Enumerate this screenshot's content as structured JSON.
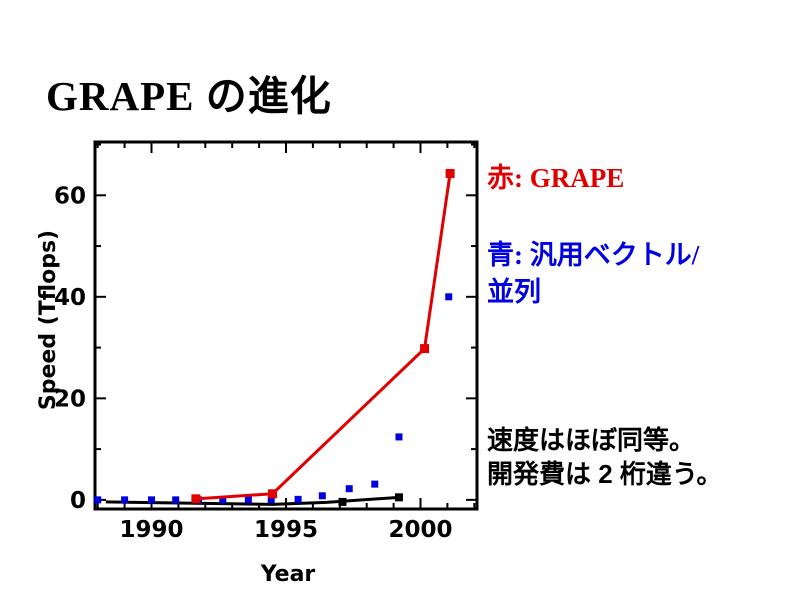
{
  "slide": {
    "title": "GRAPE の進化",
    "background": "#ffffff"
  },
  "legend": {
    "red_label": "赤: GRAPE",
    "red_color": "#e10000",
    "blue_label_line1": "青: 汎用ベクトル/",
    "blue_label_line2": "並列",
    "blue_color": "#0000e1"
  },
  "annotation": {
    "line1": "速度はほぼ同等。",
    "line2": "開発費は 2 桁違う。"
  },
  "chart_data": {
    "type": "line",
    "title": "",
    "xlabel": "Year",
    "ylabel": "Speed (Tflops)",
    "xlim": [
      1987.9,
      2002.1
    ],
    "ylim": [
      -1.8,
      70.5
    ],
    "x_major_ticks": [
      1990,
      1995,
      2000
    ],
    "x_minor_step": 1,
    "y_major_ticks": [
      0,
      20,
      40,
      60
    ],
    "y_minor_step": 10,
    "grid": false,
    "legend_position": "none",
    "frame_color": "#000000",
    "series": [
      {
        "name": "unlabeled-black-baseline",
        "color": "#000000",
        "style": "line+markers",
        "line_width": 3,
        "marker": "square",
        "marker_size": 8,
        "points": [
          [
            1988.3,
            -0.4
          ],
          [
            1994.5,
            -0.9
          ],
          [
            1996.5,
            -0.5
          ],
          [
            1999.2,
            0.5
          ]
        ],
        "marker_points": [
          [
            1997.1,
            -0.4
          ],
          [
            1999.2,
            0.5
          ]
        ]
      },
      {
        "name": "汎用ベクトル/並列 (general-purpose vector/parallel)",
        "color": "#0000e1",
        "style": "scatter",
        "marker": "square",
        "marker_size": 7,
        "points": [
          [
            1988.0,
            0
          ],
          [
            1989.0,
            0
          ],
          [
            1990.0,
            0
          ],
          [
            1990.9,
            0
          ],
          [
            1991.75,
            0
          ],
          [
            1992.65,
            0
          ],
          [
            1993.6,
            0
          ],
          [
            1994.45,
            0
          ],
          [
            1995.45,
            0.1
          ],
          [
            1996.35,
            0.8
          ],
          [
            1997.35,
            2.2
          ],
          [
            1998.3,
            3.1
          ],
          [
            1999.2,
            12.4
          ],
          [
            2001.05,
            40
          ]
        ]
      },
      {
        "name": "GRAPE",
        "color": "#e10000",
        "style": "line+markers",
        "line_width": 3,
        "marker": "square",
        "marker_size": 9,
        "points": [
          [
            1991.65,
            0.2
          ],
          [
            1994.5,
            1.2
          ],
          [
            2000.15,
            29.8
          ],
          [
            2001.1,
            64.3
          ]
        ],
        "marker_points": [
          [
            1991.65,
            0.2
          ],
          [
            1994.5,
            1.2
          ],
          [
            2000.15,
            29.8
          ],
          [
            2001.1,
            64.3
          ]
        ]
      }
    ]
  }
}
